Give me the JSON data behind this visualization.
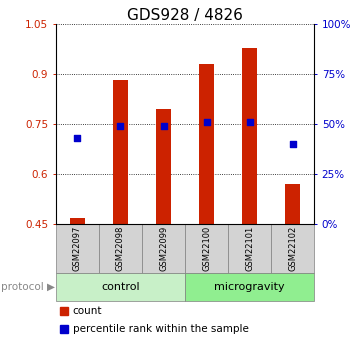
{
  "title": "GDS928 / 4826",
  "samples": [
    "GSM22097",
    "GSM22098",
    "GSM22099",
    "GSM22100",
    "GSM22101",
    "GSM22102"
  ],
  "bar_tops": [
    0.468,
    0.882,
    0.795,
    0.93,
    0.978,
    0.57
  ],
  "bar_base": 0.45,
  "pct_right": [
    43,
    49,
    49,
    51,
    51,
    40
  ],
  "ylim_left": [
    0.45,
    1.05
  ],
  "ylim_right": [
    0,
    100
  ],
  "yticks_left": [
    0.45,
    0.6,
    0.75,
    0.9,
    1.05
  ],
  "ytick_labels_left": [
    "0.45",
    "0.6",
    "0.75",
    "0.9",
    "1.05"
  ],
  "yticks_right": [
    0,
    25,
    50,
    75,
    100
  ],
  "ytick_labels_right": [
    "0%",
    "25%",
    "50%",
    "75%",
    "100%"
  ],
  "protocol_groups": [
    {
      "label": "control",
      "indices": [
        0,
        1,
        2
      ],
      "color": "#c8f0c8"
    },
    {
      "label": "microgravity",
      "indices": [
        3,
        4,
        5
      ],
      "color": "#90ee90"
    }
  ],
  "bar_color": "#cc2200",
  "dot_color": "#0000cc",
  "sample_box_color": "#d3d3d3",
  "background_color": "#ffffff",
  "title_fontsize": 11,
  "left_color": "#cc2200",
  "right_color": "#0000cc"
}
